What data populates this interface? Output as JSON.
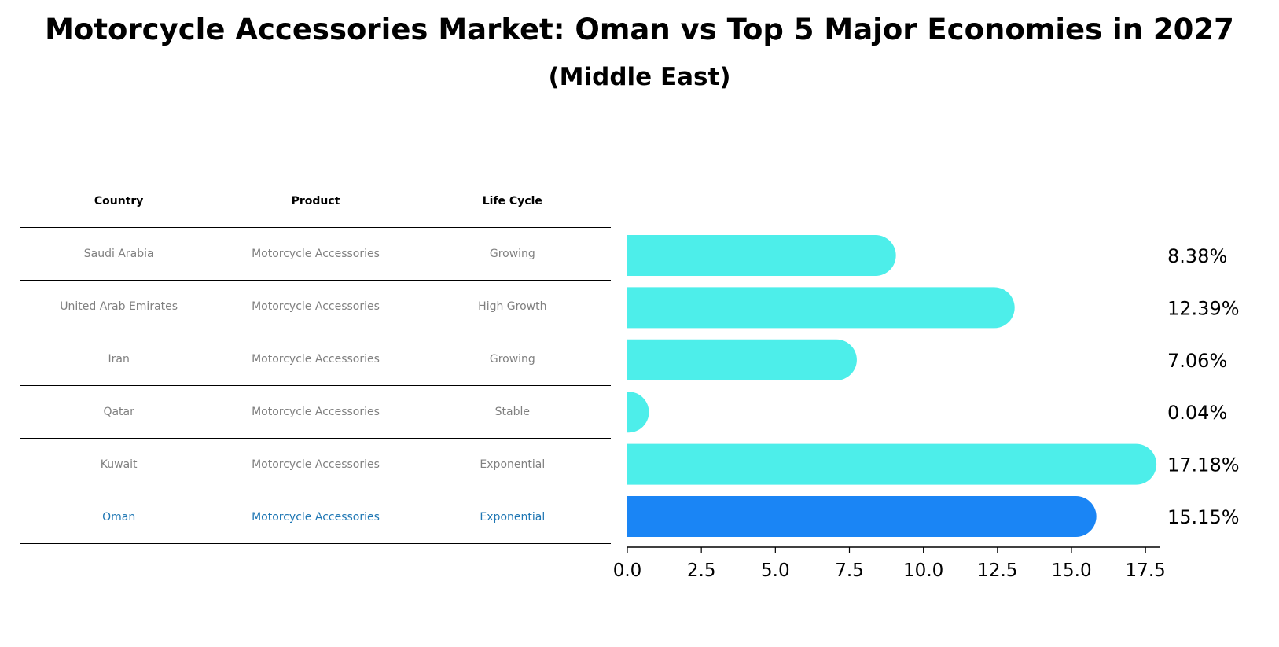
{
  "title": "Motorcycle Accessories Market: Oman vs Top 5 Major Economies in 2027",
  "subtitle": "(Middle East)",
  "table": {
    "headers": [
      "Country",
      "Product",
      "Life Cycle"
    ],
    "highlight_country": "Oman",
    "rows": [
      {
        "country": "Saudi Arabia",
        "product": "Motorcycle Accessories",
        "life_cycle": "Growing"
      },
      {
        "country": "United Arab Emirates",
        "product": "Motorcycle Accessories",
        "life_cycle": "High Growth"
      },
      {
        "country": "Iran",
        "product": "Motorcycle Accessories",
        "life_cycle": "Growing"
      },
      {
        "country": "Qatar",
        "product": "Motorcycle Accessories",
        "life_cycle": "Stable"
      },
      {
        "country": "Kuwait",
        "product": "Motorcycle Accessories",
        "life_cycle": "Exponential"
      },
      {
        "country": "Oman",
        "product": "Motorcycle Accessories",
        "life_cycle": "Exponential"
      }
    ]
  },
  "chart_data": {
    "type": "bar",
    "orientation": "horizontal",
    "categories": [
      "Saudi Arabia",
      "United Arab Emirates",
      "Iran",
      "Qatar",
      "Kuwait",
      "Oman"
    ],
    "values": [
      8.38,
      12.39,
      7.06,
      0.04,
      17.18,
      15.15
    ],
    "value_labels": [
      "8.38%",
      "12.39%",
      "7.06%",
      "0.04%",
      "17.18%",
      "15.15%"
    ],
    "xlim": [
      0,
      18
    ],
    "xticks": [
      0.0,
      2.5,
      5.0,
      7.5,
      10.0,
      12.5,
      15.0,
      17.5
    ],
    "xtick_labels": [
      "0.0",
      "2.5",
      "5.0",
      "7.5",
      "10.0",
      "12.5",
      "15.0",
      "17.5"
    ],
    "grid": false,
    "colors": {
      "default": "#4deeea",
      "highlight": "#1a85f5"
    },
    "highlight": "Oman"
  }
}
